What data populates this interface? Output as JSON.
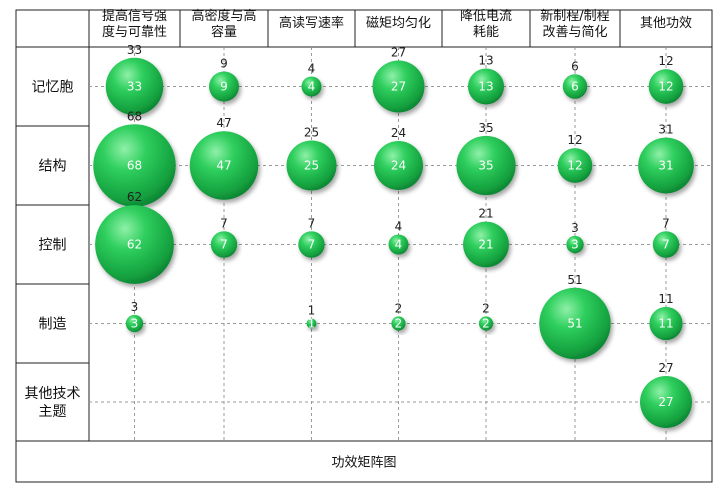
{
  "chart_data": {
    "type": "bubble-matrix",
    "title": "",
    "caption": "功效矩阵图",
    "columns": [
      "提高信号强度与可靠性",
      "高密度与高容量",
      "高读写速率",
      "磁矩均匀化",
      "降低电流耗能",
      "新制程/制程改善与简化",
      "其他功效"
    ],
    "column_header_lines": [
      [
        "提高信号强",
        "度与可靠性"
      ],
      [
        "高密度与高",
        "容量"
      ],
      [
        "高读写速率"
      ],
      [
        "磁矩均匀化"
      ],
      [
        "降低电流",
        "耗能"
      ],
      [
        "新制程/制程",
        "改善与简化"
      ],
      [
        "其他功效"
      ]
    ],
    "rows": [
      "记忆胞",
      "结构",
      "控制",
      "制造",
      "其他技术主题"
    ],
    "row_label_lines": [
      [
        "记忆胞"
      ],
      [
        "结构"
      ],
      [
        "控制"
      ],
      [
        "制造"
      ],
      [
        "其他技术",
        "主题"
      ]
    ],
    "values": [
      [
        33,
        9,
        4,
        27,
        13,
        6,
        12
      ],
      [
        68,
        47,
        25,
        24,
        35,
        12,
        31
      ],
      [
        62,
        7,
        7,
        4,
        21,
        3,
        7
      ],
      [
        3,
        null,
        1,
        2,
        2,
        51,
        11
      ],
      [
        null,
        null,
        null,
        null,
        null,
        null,
        27
      ]
    ],
    "grid": "dashed",
    "bubble_color": "#1db14a"
  }
}
